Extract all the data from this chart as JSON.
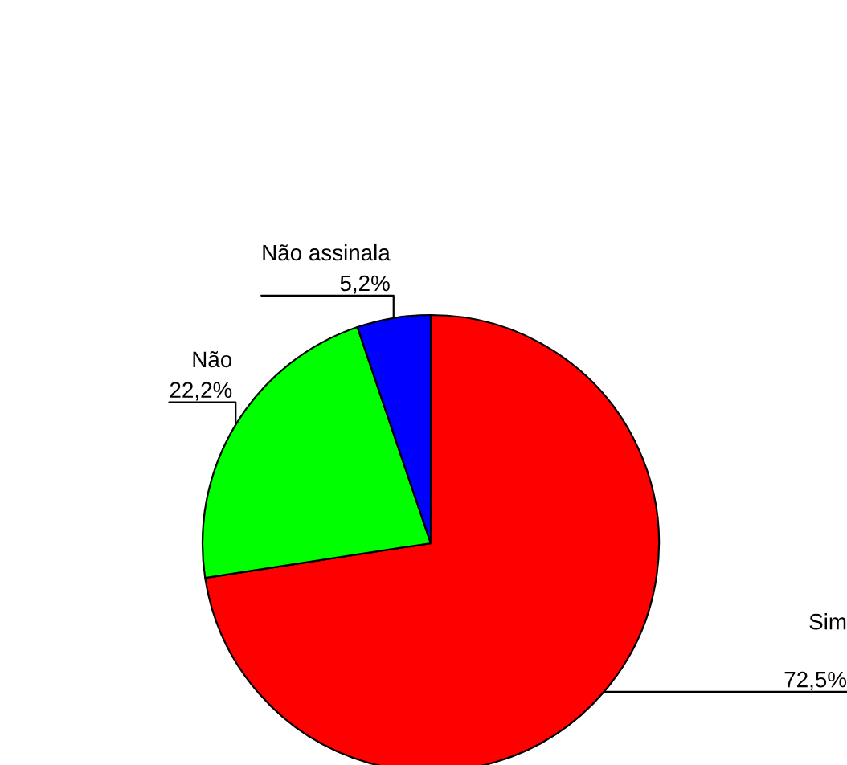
{
  "chart_data": {
    "type": "pie",
    "categories": [
      "Sim",
      "Não",
      "Não assinala"
    ],
    "values": [
      72.5,
      22.2,
      5.2
    ],
    "value_labels": [
      "72,5%",
      "22,2%",
      "5,2%"
    ],
    "colors": [
      "#ff0000",
      "#00ff00",
      "#0000ff"
    ]
  }
}
